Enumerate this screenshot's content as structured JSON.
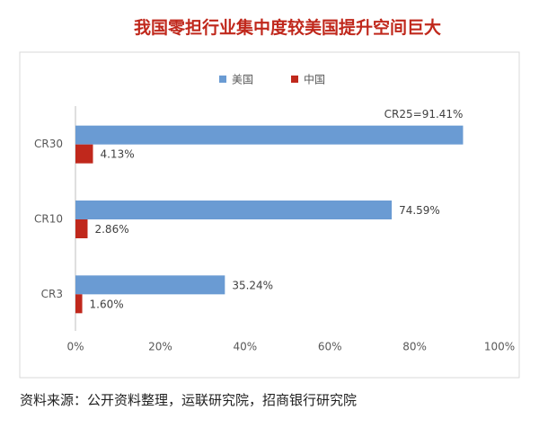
{
  "chart_data": {
    "type": "hbar",
    "title": "我国零担行业集中度较美国提升空间巨大",
    "source": "资料来源：公开资料整理，运联研究院，招商银行研究院",
    "categories": [
      "CR30",
      "CR10",
      "CR3"
    ],
    "series": [
      {
        "name": "美国",
        "color": "#6a9bd3",
        "values": [
          91.41,
          74.59,
          35.24
        ],
        "value_labels": [
          "CR25=91.41%",
          "74.59%",
          "35.24%"
        ]
      },
      {
        "name": "中国",
        "color": "#c0281c",
        "values": [
          4.13,
          2.86,
          1.6
        ],
        "value_labels": [
          "4.13%",
          "2.86%",
          "1.60%"
        ]
      }
    ],
    "xlim": [
      0,
      100
    ],
    "xticks": [
      {
        "value": 0,
        "label": "0%"
      },
      {
        "value": 20,
        "label": "20%"
      },
      {
        "value": 40,
        "label": "40%"
      },
      {
        "value": 60,
        "label": "60%"
      },
      {
        "value": 80,
        "label": "80%"
      },
      {
        "value": 100,
        "label": "100%"
      }
    ],
    "legend": "top"
  }
}
